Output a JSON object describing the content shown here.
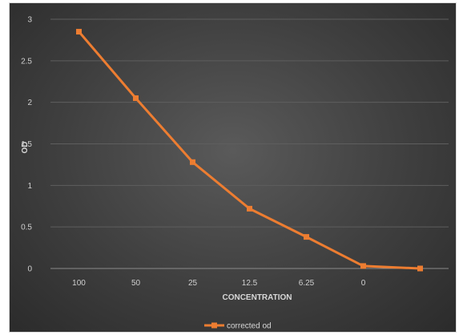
{
  "chart_data": {
    "type": "line",
    "title": "",
    "xlabel": "CONCENTRATION",
    "ylabel": "OD",
    "categories": [
      "100",
      "50",
      "25",
      "12.5",
      "6.25",
      "0",
      ""
    ],
    "series": [
      {
        "name": "corrected od",
        "values": [
          2.85,
          2.05,
          1.28,
          0.72,
          0.38,
          0.03,
          0.0
        ],
        "color": "#ed7d31"
      }
    ],
    "ylim": [
      0,
      3
    ],
    "yticks": [
      "0",
      "0.5",
      "1",
      "1.5",
      "2",
      "2.5",
      "3"
    ],
    "grid": true,
    "legend_position": "bottom"
  }
}
